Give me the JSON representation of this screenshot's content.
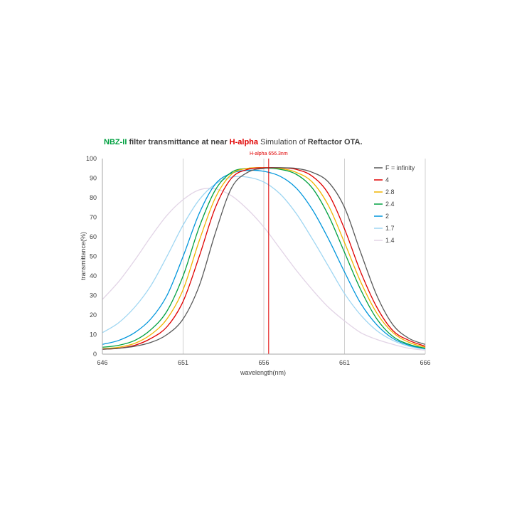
{
  "title": {
    "part1": "NBZ-II",
    "part2": " filter transmittance  at near ",
    "part3": "H-alpha",
    "part4": "   Simulation of ",
    "part5": "Reftactor OTA."
  },
  "colors": {
    "title_green": "#00a040",
    "title_red": "#e00000",
    "halpha_line": "#e00000"
  },
  "chart_data": {
    "type": "line",
    "xlabel": "wavelength(nm)",
    "ylabel": "transmittance(%)",
    "xlim": [
      646,
      666
    ],
    "ylim": [
      0,
      100
    ],
    "xticks": [
      646,
      651,
      656,
      661,
      666
    ],
    "yticks": [
      0,
      10,
      20,
      30,
      40,
      50,
      60,
      70,
      80,
      90,
      100
    ],
    "grid": "vertical",
    "legend": "top-right",
    "annotation": {
      "label": "H-alpha 656.3nm",
      "x": 656.3
    },
    "x": [
      646,
      647,
      648,
      649,
      650,
      651,
      652,
      653,
      654,
      655,
      656,
      657,
      658,
      659,
      660,
      661,
      662,
      663,
      664,
      665,
      666
    ],
    "series": [
      {
        "name": "F = infinity",
        "color": "#595959",
        "values": [
          2.5,
          3,
          4,
          6,
          10,
          18,
          35,
          62,
          85,
          93,
          95,
          95.3,
          95,
          93,
          88,
          75,
          52,
          30,
          15,
          8,
          5
        ]
      },
      {
        "name": "4",
        "color": "#e00000",
        "values": [
          2.5,
          3,
          4.5,
          8,
          14,
          27,
          50,
          75,
          90,
          94.5,
          95.3,
          95.3,
          94.5,
          91,
          82,
          64,
          42,
          24,
          12,
          7,
          4
        ]
      },
      {
        "name": "2.8",
        "color": "#f0b400",
        "values": [
          2.8,
          3.5,
          5.5,
          10,
          18,
          33,
          58,
          80,
          92,
          95,
          95.3,
          95,
          93,
          88,
          76,
          57,
          37,
          21,
          11,
          6,
          3.5
        ]
      },
      {
        "name": "2.4",
        "color": "#00a040",
        "values": [
          3.5,
          4.5,
          7,
          12.5,
          22,
          40,
          65,
          84,
          93,
          95,
          95.2,
          94.5,
          92,
          85,
          71,
          52,
          33,
          18,
          9,
          5,
          3
        ]
      },
      {
        "name": "2",
        "color": "#0096dc",
        "values": [
          5,
          7,
          11,
          18,
          30,
          50,
          72,
          87,
          92.5,
          94,
          93.5,
          91,
          85,
          74,
          59,
          42,
          26,
          15,
          8,
          4.5,
          2.8
        ]
      },
      {
        "name": "1.7",
        "color": "#9fd6f2",
        "values": [
          11,
          16,
          24,
          35,
          50,
          66,
          79,
          87,
          90.5,
          90.5,
          88,
          82,
          72,
          59,
          45,
          31,
          20,
          12,
          7,
          4,
          2.5
        ]
      },
      {
        "name": "1.4",
        "color": "#e2d4e6",
        "values": [
          28,
          37,
          48,
          60,
          71,
          79,
          84,
          84.5,
          81,
          74,
          65,
          54,
          43,
          33,
          24,
          17,
          11,
          7.5,
          5,
          3,
          2
        ]
      }
    ]
  }
}
